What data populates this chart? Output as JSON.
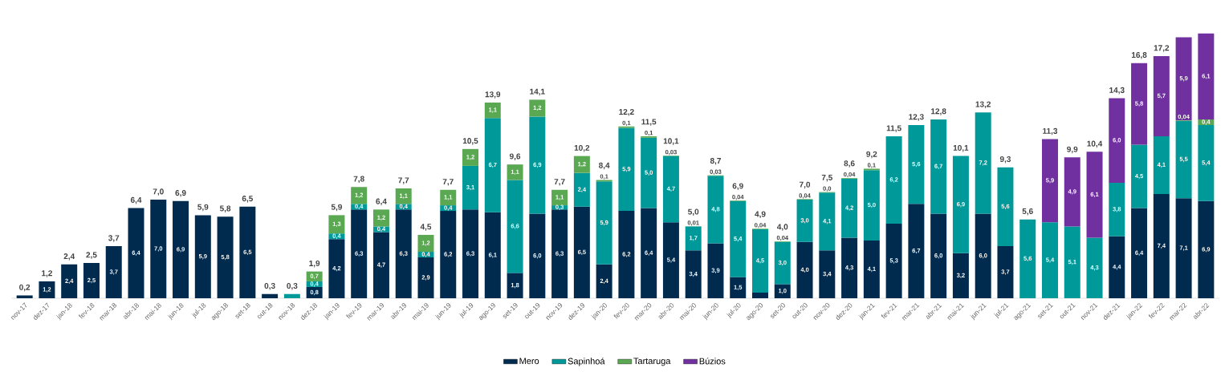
{
  "chart_data": {
    "type": "bar",
    "stacked": true,
    "legend": "bottom",
    "categories": [
      "nov-17",
      "dez-17",
      "jan-18",
      "fev-18",
      "mar-18",
      "abr-18",
      "mai-18",
      "jun-18",
      "jul-18",
      "ago-18",
      "set-18",
      "out-18",
      "nov-18",
      "dez-18",
      "jan-19",
      "fev-19",
      "mar-19",
      "abr-19",
      "mai-19",
      "jun-19",
      "jul-19",
      "ago-19",
      "set-19",
      "out-19",
      "nov-19",
      "dez-19",
      "jan-20",
      "fev-20",
      "mar-20",
      "abr-20",
      "mai-20",
      "jun-20",
      "jul-20",
      "ago-20",
      "set-20",
      "out-20",
      "nov-20",
      "dez-20",
      "jan-21",
      "fev-21",
      "mar-21",
      "abr-21",
      "mai-21",
      "jun-21",
      "jul-21",
      "ago-21",
      "set-21",
      "out-21",
      "nov-21",
      "dez-21",
      "jan-22",
      "fev-22",
      "mar-22",
      "abr-22"
    ],
    "series": [
      {
        "name": "Mero",
        "color": "#002b4e",
        "values": [
          0.2,
          1.2,
          2.4,
          2.5,
          3.7,
          6.4,
          7.0,
          6.9,
          5.9,
          5.8,
          6.5,
          0.3,
          null,
          0.8,
          4.2,
          6.3,
          4.7,
          6.3,
          2.9,
          6.2,
          6.3,
          6.1,
          1.8,
          6.0,
          6.3,
          6.5,
          2.4,
          6.2,
          6.4,
          5.4,
          3.4,
          3.9,
          1.5,
          0.4,
          1.0,
          4.0,
          3.4,
          4.3,
          4.1,
          5.3,
          6.7,
          6.0,
          3.2,
          6.0,
          3.7,
          null,
          null,
          null,
          null,
          4.4,
          6.4,
          7.4,
          7.1,
          6.9
        ],
        "value_labels": [
          null,
          "1,2",
          "2,4",
          "2,5",
          "3,7",
          "6,4",
          "7,0",
          "6,9",
          "5,9",
          "5,8",
          "6,5",
          null,
          null,
          "0,8",
          "4,2",
          "6,3",
          "4,7",
          "6,3",
          "2,9",
          "6,2",
          "6,3",
          "6,1",
          "1,8",
          "6,0",
          "6,3",
          "6,5",
          "2,4",
          "6,2",
          "6,4",
          "5,4",
          "3,4",
          "3,9",
          "1,5",
          null,
          "1,0",
          "4,0",
          "3,4",
          "4,3",
          "4,1",
          "5,3",
          "6,7",
          "6,0",
          "3,2",
          "6,0",
          "3,7",
          null,
          null,
          null,
          null,
          "4,4",
          "6,4",
          "7,4",
          "7,1",
          "6,9"
        ]
      },
      {
        "name": "Sapinhoá",
        "color": "#009999",
        "values": [
          null,
          null,
          null,
          null,
          null,
          null,
          null,
          null,
          null,
          null,
          null,
          null,
          0.3,
          0.4,
          0.4,
          0.4,
          0.4,
          0.4,
          0.4,
          0.4,
          3.1,
          6.7,
          6.6,
          6.9,
          0.3,
          2.4,
          5.9,
          5.9,
          5.0,
          4.7,
          1.7,
          4.8,
          5.4,
          4.5,
          3.0,
          3.0,
          4.1,
          4.2,
          5.0,
          6.2,
          5.6,
          6.7,
          6.9,
          7.2,
          5.6,
          5.6,
          5.4,
          5.1,
          4.3,
          3.8,
          4.5,
          4.1,
          5.5,
          5.4
        ],
        "value_labels": [
          null,
          null,
          null,
          null,
          null,
          null,
          null,
          null,
          null,
          null,
          null,
          null,
          null,
          "0,4",
          "0,4",
          "0,4",
          "0,4",
          "0,4",
          "0,4",
          "0,4",
          "3,1",
          "6,7",
          "6,6",
          "6,9",
          "0,3",
          "2,4",
          "5,9",
          "5,9",
          "5,0",
          "4,7",
          "1,7",
          "4,8",
          "5,4",
          "4,5",
          "3,0",
          "3,0",
          "4,1",
          "4,2",
          "5,0",
          "6,2",
          "5,6",
          "6,7",
          "6,9",
          "7,2",
          "5,6",
          "5,6",
          "5,4",
          "5,1",
          "4,3",
          "3,8",
          "4,5",
          "4,1",
          "5,5",
          "5,4"
        ]
      },
      {
        "name": "Tartaruga",
        "color": "#5ba853",
        "values": [
          null,
          null,
          null,
          null,
          null,
          null,
          null,
          null,
          null,
          null,
          null,
          null,
          null,
          0.7,
          1.3,
          1.2,
          1.2,
          1.1,
          1.2,
          1.1,
          1.2,
          1.1,
          1.1,
          1.2,
          1.1,
          1.2,
          0.1,
          0.1,
          0.1,
          0.03,
          0.01,
          0.03,
          0.04,
          0.04,
          0.04,
          0.04,
          0.04,
          0.04,
          0.1,
          null,
          null,
          null,
          null,
          null,
          null,
          null,
          null,
          null,
          null,
          null,
          null,
          null,
          0.04,
          0.4
        ],
        "value_labels": [
          null,
          null,
          null,
          null,
          null,
          null,
          null,
          null,
          null,
          null,
          null,
          null,
          null,
          "0,7",
          "1,3",
          "1,2",
          "1,2",
          "1,1",
          "1,2",
          "1,1",
          "1,2",
          "1,1",
          "1,1",
          "1,2",
          "1,1",
          "1,2",
          "0,1",
          "0,1",
          "0,1",
          "0,03",
          "0,01",
          "0,03",
          "0,04",
          "0,04",
          "0,04",
          "0,04",
          "0,0",
          "0,04",
          "0,1",
          null,
          null,
          null,
          null,
          null,
          null,
          null,
          null,
          null,
          null,
          null,
          null,
          null,
          "0,04",
          "0,4"
        ]
      },
      {
        "name": "Búzios",
        "color": "#7030a0",
        "values": [
          null,
          null,
          null,
          null,
          null,
          null,
          null,
          null,
          null,
          null,
          null,
          null,
          null,
          null,
          null,
          null,
          null,
          null,
          null,
          null,
          null,
          null,
          null,
          null,
          null,
          null,
          null,
          null,
          null,
          null,
          null,
          null,
          null,
          null,
          null,
          null,
          null,
          null,
          null,
          null,
          null,
          null,
          null,
          null,
          null,
          null,
          5.9,
          4.9,
          6.1,
          6.0,
          5.8,
          5.7,
          5.9,
          6.1
        ],
        "value_labels": [
          null,
          null,
          null,
          null,
          null,
          null,
          null,
          null,
          null,
          null,
          null,
          null,
          null,
          null,
          null,
          null,
          null,
          null,
          null,
          null,
          null,
          null,
          null,
          null,
          null,
          null,
          null,
          null,
          null,
          null,
          null,
          null,
          null,
          null,
          null,
          null,
          null,
          null,
          null,
          null,
          null,
          null,
          null,
          null,
          null,
          null,
          "5,9",
          "4,9",
          "6,1",
          "6,0",
          "5,8",
          "5,7",
          "5,9",
          "6,1"
        ]
      }
    ],
    "totals": [
      "0,2",
      "1,2",
      "2,4",
      "2,5",
      "3,7",
      "6,4",
      "7,0",
      "6,9",
      "5,9",
      "5,8",
      "6,5",
      "0,3",
      "0,3",
      "1,9",
      "5,9",
      "7,8",
      "6,4",
      "7,7",
      "4,5",
      "7,7",
      "10,5",
      "13,9",
      "9,6",
      "14,1",
      "7,7",
      "10,2",
      "8,4",
      "12,2",
      "11,5",
      "10,1",
      "5,0",
      "8,7",
      "6,9",
      "4,9",
      "4,0",
      "7,0",
      "7,5",
      "8,6",
      "9,2",
      "11,5",
      "12,3",
      "12,8",
      "10,1",
      "13,2",
      "9,3",
      "5,6",
      "11,3",
      "9,9",
      "10,4",
      "14,3",
      "16,8",
      "17,2",
      null,
      null
    ]
  }
}
